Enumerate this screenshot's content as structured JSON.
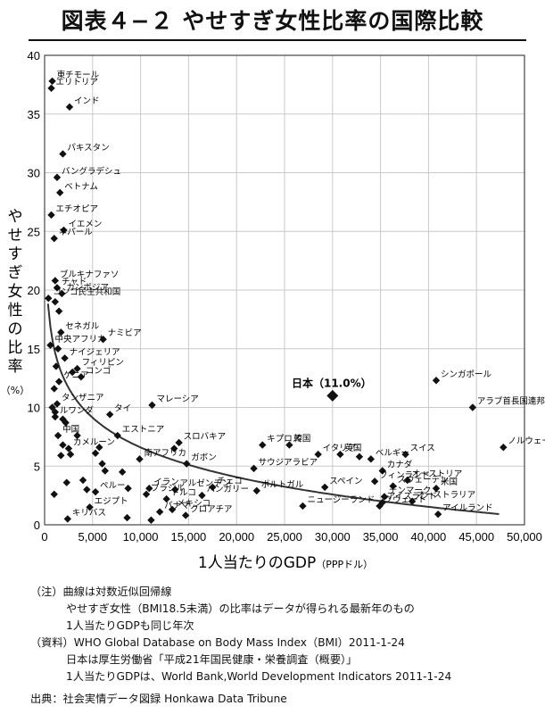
{
  "title": "図表４−２ やせすぎ女性比率の国際比較",
  "notes": {
    "note_label": "（注）曲線は対数近似回帰線",
    "note_line2": "やせすぎ女性（BMI18.5未満）の比率はデータが得られる最新年のもの",
    "note_line3": "1人当たりGDPも同じ年次",
    "data_label": "（資料）WHO Global Database on Body Mass Index（BMI）2011-1-24",
    "data_line2": "日本は厚生労働省「平成21年国民健康・栄養調査（概要）」",
    "data_line3": "1人当たりGDPは、World Bank,World Development Indicators 2011-1-24"
  },
  "source": "出典：社会実情データ図録 Honkawa Data Tribune",
  "chart_data": {
    "type": "scatter",
    "xlabel": "1人当たりのGDP",
    "xlabel_unit": "（PPPドル）",
    "ylabel": "やせすぎ女性の比率",
    "ylabel_unit": "（%）",
    "xlim": [
      0,
      50000
    ],
    "ylim": [
      0,
      40
    ],
    "xticks": [
      0,
      5000,
      10000,
      15000,
      20000,
      25000,
      30000,
      35000,
      40000,
      45000,
      50000
    ],
    "xtick_labels": [
      "0",
      "5,000",
      "10,000",
      "15,000",
      "20,000",
      "25,000",
      "30,000",
      "35,000",
      "40,000",
      "45,000",
      "50,000"
    ],
    "yticks": [
      0,
      5,
      10,
      15,
      20,
      25,
      30,
      35,
      40
    ],
    "trendline": {
      "type": "logarithmic",
      "a": 40.23,
      "b": -3.652
    },
    "highlight": {
      "label": "日本（11.0%）",
      "x": 30000,
      "y": 11.0
    },
    "points": [
      {
        "label": "東チモール",
        "x": 800,
        "y": 37.8
      },
      {
        "label": "エリトリア",
        "x": 700,
        "y": 37.2
      },
      {
        "label": "インド",
        "x": 2600,
        "y": 35.6
      },
      {
        "label": "パキスタン",
        "x": 1900,
        "y": 31.6
      },
      {
        "label": "バングラデシュ",
        "x": 1300,
        "y": 29.6
      },
      {
        "label": "ベトナム",
        "x": 1600,
        "y": 28.3
      },
      {
        "label": "エチオピア",
        "x": 700,
        "y": 26.4
      },
      {
        "label": "イエメン",
        "x": 2000,
        "y": 25.1
      },
      {
        "label": "ネパール",
        "x": 1000,
        "y": 24.4
      },
      {
        "label": "ブルキナファソ",
        "x": 1100,
        "y": 20.8
      },
      {
        "label": "チャド",
        "x": 1300,
        "y": 20.2
      },
      {
        "label": "カンボジア",
        "x": 1800,
        "y": 19.7
      },
      {
        "label": "コンゴ民主共和国",
        "x": 400,
        "y": 19.3
      },
      {
        "label": "",
        "x": 1100,
        "y": 19.0
      },
      {
        "label": "",
        "x": 1500,
        "y": 18.2
      },
      {
        "label": "セネガル",
        "x": 1700,
        "y": 16.4
      },
      {
        "label": "中央アフリカ",
        "x": 600,
        "y": 15.3
      },
      {
        "label": "",
        "x": 1400,
        "y": 15.0
      },
      {
        "label": "ナミビア",
        "x": 6100,
        "y": 15.8
      },
      {
        "label": "ナイジェリア",
        "x": 2100,
        "y": 14.2
      },
      {
        "label": "フィリピン",
        "x": 3400,
        "y": 13.3
      },
      {
        "label": "",
        "x": 1200,
        "y": 13.5
      },
      {
        "label": "コンゴ",
        "x": 3800,
        "y": 12.6
      },
      {
        "label": "",
        "x": 2900,
        "y": 13.0
      },
      {
        "label": "ケニア",
        "x": 1500,
        "y": 12.2
      },
      {
        "label": "",
        "x": 1000,
        "y": 11.6
      },
      {
        "label": "タンザニア",
        "x": 1300,
        "y": 10.3
      },
      {
        "label": "",
        "x": 800,
        "y": 10.0
      },
      {
        "label": "",
        "x": 1100,
        "y": 9.6
      },
      {
        "label": "",
        "x": 1900,
        "y": 9.0
      },
      {
        "label": "マレーシア",
        "x": 11200,
        "y": 10.2
      },
      {
        "label": "タイ",
        "x": 6800,
        "y": 9.4
      },
      {
        "label": "ルワンダ",
        "x": 1100,
        "y": 9.2
      },
      {
        "label": "中国",
        "x": 1400,
        "y": 7.6
      },
      {
        "label": "",
        "x": 2200,
        "y": 8.7
      },
      {
        "label": "",
        "x": 3400,
        "y": 7.6
      },
      {
        "label": "エストニア",
        "x": 7600,
        "y": 7.6
      },
      {
        "label": "スロバキア",
        "x": 14000,
        "y": 7.0
      },
      {
        "label": "",
        "x": 13500,
        "y": 6.5
      },
      {
        "label": "カメルーン",
        "x": 2500,
        "y": 6.5
      },
      {
        "label": "",
        "x": 1700,
        "y": 5.9
      },
      {
        "label": "",
        "x": 1900,
        "y": 6.8
      },
      {
        "label": "",
        "x": 2700,
        "y": 6.0
      },
      {
        "label": "",
        "x": 5300,
        "y": 6.1
      },
      {
        "label": "",
        "x": 5700,
        "y": 6.6
      },
      {
        "label": "南アフリカ",
        "x": 9900,
        "y": 5.6
      },
      {
        "label": "ガボン",
        "x": 14800,
        "y": 5.2
      },
      {
        "label": "",
        "x": 6000,
        "y": 5.2
      },
      {
        "label": "",
        "x": 6300,
        "y": 4.6
      },
      {
        "label": "",
        "x": 8100,
        "y": 4.5
      },
      {
        "label": "イラン",
        "x": 10900,
        "y": 3.1
      },
      {
        "label": "アルゼンチン",
        "x": 13600,
        "y": 3.0
      },
      {
        "label": "",
        "x": 4000,
        "y": 3.8
      },
      {
        "label": "",
        "x": 2300,
        "y": 3.6
      },
      {
        "label": "",
        "x": 4400,
        "y": 3.0
      },
      {
        "label": "ペルー",
        "x": 5300,
        "y": 2.8
      },
      {
        "label": "ブラジル",
        "x": 10600,
        "y": 2.6
      },
      {
        "label": "トルコ",
        "x": 12700,
        "y": 2.2
      },
      {
        "label": "",
        "x": 8700,
        "y": 3.1
      },
      {
        "label": "チェコ",
        "x": 17500,
        "y": 3.2
      },
      {
        "label": "ハンガリー",
        "x": 16400,
        "y": 2.5
      },
      {
        "label": "メキシコ",
        "x": 13300,
        "y": 1.3
      },
      {
        "label": "キリバス",
        "x": 2400,
        "y": 0.5
      },
      {
        "label": "",
        "x": 1000,
        "y": 2.6
      },
      {
        "label": "エジプト",
        "x": 4700,
        "y": 1.5
      },
      {
        "label": "パナマ",
        "x": 12000,
        "y": 1.1
      },
      {
        "label": "",
        "x": 8600,
        "y": 0.6
      },
      {
        "label": "クロアチア",
        "x": 14700,
        "y": 0.8
      },
      {
        "label": "",
        "x": 11100,
        "y": 0.4
      },
      {
        "label": "キプロス",
        "x": 22700,
        "y": 6.8
      },
      {
        "label": "韓国",
        "x": 25500,
        "y": 6.8
      },
      {
        "label": "イタリア",
        "x": 28500,
        "y": 6.0
      },
      {
        "label": "英国",
        "x": 30800,
        "y": 6.0
      },
      {
        "label": "ベルギー",
        "x": 34000,
        "y": 5.6
      },
      {
        "label": "スイス",
        "x": 37600,
        "y": 6.0
      },
      {
        "label": "",
        "x": 32800,
        "y": 5.8
      },
      {
        "label": "カナダ",
        "x": 35200,
        "y": 4.6
      },
      {
        "label": "サウジアラビア",
        "x": 21800,
        "y": 4.8
      },
      {
        "label": "オーストリア",
        "x": 37800,
        "y": 3.8
      },
      {
        "label": "フィンランド",
        "x": 34400,
        "y": 3.7
      },
      {
        "label": "スウェーデン",
        "x": 36300,
        "y": 3.3
      },
      {
        "label": "米国",
        "x": 40800,
        "y": 3.1
      },
      {
        "label": "デンマーク",
        "x": 35400,
        "y": 2.4
      },
      {
        "label": "オーストラリア",
        "x": 38300,
        "y": 2.0
      },
      {
        "label": "ポルトガル",
        "x": 22100,
        "y": 2.9
      },
      {
        "label": "スペイン",
        "x": 29200,
        "y": 3.2
      },
      {
        "label": "アイスランド",
        "x": 35200,
        "y": 1.9
      },
      {
        "label": "クウェート",
        "x": 34900,
        "y": 1.6
      },
      {
        "label": "ニュージーランド",
        "x": 26900,
        "y": 1.6
      },
      {
        "label": "アイルランド",
        "x": 41000,
        "y": 0.9
      },
      {
        "label": "シンガポール",
        "x": 40800,
        "y": 12.3
      },
      {
        "label": "アラブ首長国連邦",
        "x": 44600,
        "y": 10.0
      },
      {
        "label": "ノルウェー",
        "x": 47800,
        "y": 6.6
      }
    ]
  }
}
